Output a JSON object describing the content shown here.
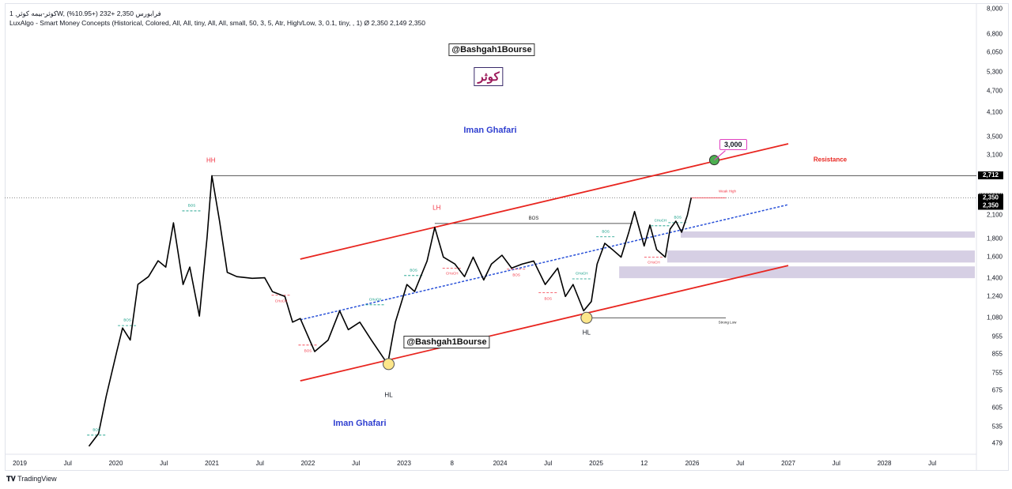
{
  "header": {
    "symbol_line": "کوثر-بیمه کوثر, 1W, فرابورس",
    "price": "2,350",
    "change": "+232 (+10.95%)",
    "indicator_line": "LuxAlgo - Smart Money Concepts (Historical, Colored, All, All, tiny, All, All, small, 50, 3, 5, Atr, High/Low, 3, 0.1, tiny, , 1)",
    "indicator_values": "Ø 2,350  2,149  2,350"
  },
  "watermarks": {
    "handle_top": "@Bashgah1Bourse",
    "handle_mid": "@Bashgah1Bourse",
    "symbol_name": "کوثر",
    "author_top": "Iman Ghafari",
    "author_bottom": "Iman Ghafari",
    "resistance": "Resistance",
    "target": "3,000"
  },
  "brand": "TradingView",
  "colors": {
    "price_line": "#000000",
    "channel": "#e8251f",
    "trend": "#2850d8",
    "zone": "#d6cfe4",
    "bull": "#089981",
    "bear": "#f23645",
    "target_marker": "#4caf50",
    "pivot_marker": "#fde68a"
  },
  "chart_data": {
    "type": "line",
    "yscale": "log",
    "ylim": [
      470,
      8000
    ],
    "xlim": [
      "2019-01",
      "2028-12"
    ],
    "grid": false,
    "y_ticks": [
      "8,000",
      "6,800",
      "6,050",
      "5,300",
      "4,700",
      "4,100",
      "3,500",
      "3,100",
      "2,100",
      "1,800",
      "1,600",
      "1,400",
      "1,240",
      "1,080",
      "955",
      "855",
      "755",
      "675",
      "605",
      "535",
      "479"
    ],
    "y_tick_values": [
      8000,
      6800,
      6050,
      5300,
      4700,
      4100,
      3500,
      3100,
      2100,
      1800,
      1600,
      1400,
      1240,
      1080,
      955,
      855,
      755,
      675,
      605,
      535,
      479
    ],
    "price_tags": [
      {
        "label": "2,712",
        "value": 2712
      },
      {
        "label": "2,350",
        "value": 2350,
        "second": "2,350"
      }
    ],
    "x_ticks": [
      {
        "label": "2019",
        "t": 2019
      },
      {
        "label": "Jul",
        "t": 2019.5
      },
      {
        "label": "2020",
        "t": 2020
      },
      {
        "label": "Jul",
        "t": 2020.5
      },
      {
        "label": "2021",
        "t": 2021
      },
      {
        "label": "Jul",
        "t": 2021.5
      },
      {
        "label": "2022",
        "t": 2022
      },
      {
        "label": "Jul",
        "t": 2022.5
      },
      {
        "label": "2023",
        "t": 2023
      },
      {
        "label": "8",
        "t": 2023.5
      },
      {
        "label": "2024",
        "t": 2024
      },
      {
        "label": "Jul",
        "t": 2024.5
      },
      {
        "label": "2025",
        "t": 2025
      },
      {
        "label": "12",
        "t": 2025.5
      },
      {
        "label": "2026",
        "t": 2026
      },
      {
        "label": "Jul",
        "t": 2026.5
      },
      {
        "label": "2027",
        "t": 2027
      },
      {
        "label": "Jul",
        "t": 2027.5
      },
      {
        "label": "2028",
        "t": 2028
      },
      {
        "label": "Jul",
        "t": 2028.5
      }
    ],
    "series": [
      {
        "t": [
          2019.72,
          2019.82,
          2019.9,
          2020.01,
          2020.07,
          2020.15,
          2020.23,
          2020.34,
          2020.44,
          2020.52,
          2020.6,
          2020.7,
          2020.77,
          2020.87,
          2020.95,
          2021.0,
          2021.08,
          2021.16,
          2021.26,
          2021.42,
          2021.55,
          2021.63,
          2021.76,
          2021.84,
          2021.92,
          2022.07,
          2022.21,
          2022.33,
          2022.42,
          2022.54,
          2022.66,
          2022.83,
          2022.91,
          2023.03,
          2023.11,
          2023.24,
          2023.32,
          2023.41,
          2023.53,
          2023.63,
          2023.72,
          2023.83,
          2023.91,
          2024.02,
          2024.12,
          2024.23,
          2024.35,
          2024.47,
          2024.6,
          2024.68,
          2024.76,
          2024.87,
          2024.95,
          2025.01,
          2025.09,
          2025.17,
          2025.26,
          2025.34,
          2025.4,
          2025.5,
          2025.56,
          2025.63,
          2025.72,
          2025.77,
          2025.83,
          2025.89,
          2025.95,
          2025.99
        ],
        "values": [
          470,
          510,
          650,
          868,
          1011,
          935,
          1341,
          1410,
          1563,
          1500,
          1998,
          1340,
          1500,
          1092,
          1820,
          2712,
          2020,
          1450,
          1410,
          1395,
          1400,
          1280,
          1240,
          1050,
          1075,
          868,
          935,
          1130,
          1000,
          1050,
          935,
          800,
          1050,
          1340,
          1280,
          1560,
          1940,
          1600,
          1530,
          1410,
          1600,
          1380,
          1530,
          1620,
          1490,
          1530,
          1560,
          1340,
          1490,
          1240,
          1340,
          1130,
          1200,
          1530,
          1750,
          1680,
          1600,
          1880,
          2150,
          1720,
          1970,
          1680,
          1600,
          1920,
          2020,
          1880,
          2100,
          2350
        ]
      }
    ],
    "trendlines": [
      {
        "kind": "channel-top",
        "t": [
          2021.92,
          2027.0
        ],
        "values": [
          1580,
          3335
        ]
      },
      {
        "kind": "channel-bottom",
        "t": [
          2021.92,
          2027.0
        ],
        "values": [
          718,
          1515
        ]
      },
      {
        "kind": "midline",
        "t": [
          2021.92,
          2027.0
        ],
        "values": [
          1066,
          2248
        ]
      }
    ],
    "levels": [
      {
        "kind": "hh",
        "from": 2021.0,
        "value": 2712
      },
      {
        "kind": "last",
        "value": 2350
      },
      {
        "kind": "weak-high",
        "from": 2025.99,
        "to": 2026.35,
        "value": 2350,
        "label": "Weak High"
      },
      {
        "kind": "bos",
        "from": 2023.32,
        "to": 2025.38,
        "value": 1990,
        "label": "BOS"
      },
      {
        "kind": "strong-low",
        "from": 2024.88,
        "to": 2026.35,
        "value": 1080,
        "label": "Strong Low"
      }
    ],
    "zones": [
      {
        "from": 2025.88,
        "top": 1890,
        "bottom": 1815
      },
      {
        "from": 2025.74,
        "top": 1670,
        "bottom": 1545
      },
      {
        "from": 2025.24,
        "top": 1507,
        "bottom": 1396
      }
    ],
    "structure_labels": [
      {
        "text": "BOS",
        "t": 2019.8,
        "value": 505,
        "bias": "bull"
      },
      {
        "text": "BOS",
        "t": 2020.12,
        "value": 1027,
        "bias": "bull"
      },
      {
        "text": "BOS",
        "t": 2020.79,
        "value": 2159,
        "bias": "bull"
      },
      {
        "text": "CHoCH",
        "t": 2021.72,
        "value": 1250,
        "bias": "bear"
      },
      {
        "text": "BOS",
        "t": 2022.0,
        "value": 905,
        "bias": "bear"
      },
      {
        "text": "CHoCH",
        "t": 2022.7,
        "value": 1175,
        "bias": "bull"
      },
      {
        "text": "BOS",
        "t": 2023.1,
        "value": 1420,
        "bias": "bull"
      },
      {
        "text": "CHoCH",
        "t": 2023.5,
        "value": 1490,
        "bias": "bear"
      },
      {
        "text": "BOS",
        "t": 2024.17,
        "value": 1480,
        "bias": "bear"
      },
      {
        "text": "BOS",
        "t": 2024.5,
        "value": 1270,
        "bias": "bear"
      },
      {
        "text": "CHoCH",
        "t": 2024.85,
        "value": 1390,
        "bias": "bull"
      },
      {
        "text": "BOS",
        "t": 2025.1,
        "value": 1825,
        "bias": "bull"
      },
      {
        "text": "CHoCH",
        "t": 2025.6,
        "value": 1600,
        "bias": "bear"
      },
      {
        "text": "CHoCH",
        "t": 2025.67,
        "value": 1960,
        "bias": "bull"
      },
      {
        "text": "BOS",
        "t": 2025.85,
        "value": 2000,
        "bias": "bull"
      }
    ],
    "swing_labels": [
      {
        "text": "HH",
        "t": 2020.99,
        "value": 3000,
        "bias": "bear"
      },
      {
        "text": "LH",
        "t": 2023.34,
        "value": 2200,
        "bias": "bear"
      },
      {
        "text": "HL",
        "t": 2022.84,
        "value": 655,
        "bias": "neutral"
      },
      {
        "text": "HL",
        "t": 2024.9,
        "value": 980,
        "bias": "neutral"
      }
    ],
    "markers": [
      {
        "kind": "pivot",
        "t": 2022.84,
        "value": 800
      },
      {
        "kind": "pivot",
        "t": 2024.9,
        "value": 1080
      },
      {
        "kind": "target",
        "t": 2026.23,
        "value": 3000
      }
    ]
  }
}
